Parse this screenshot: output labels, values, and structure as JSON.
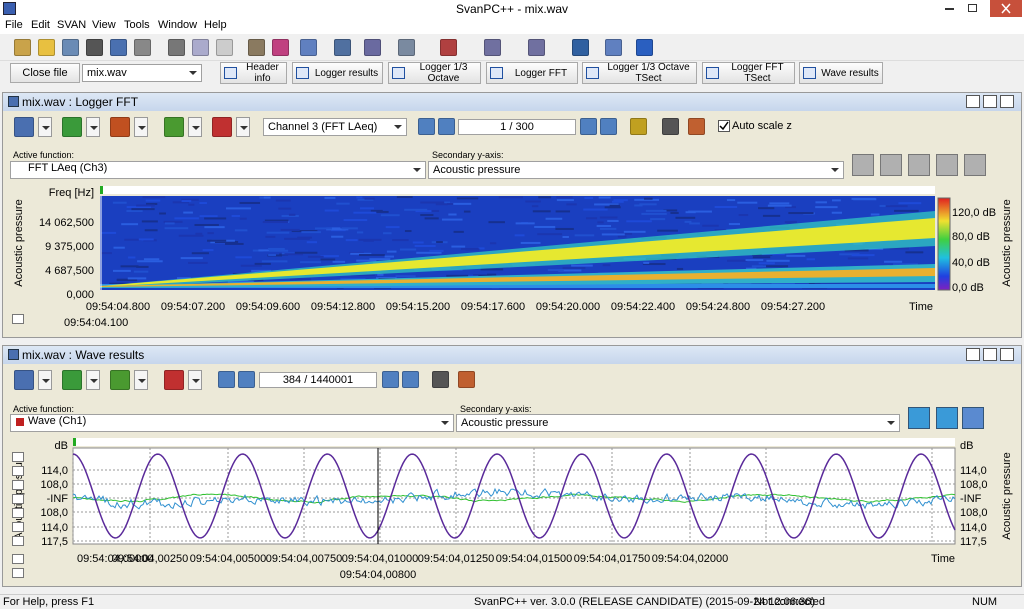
{
  "window": {
    "title": "SvanPC++ - mix.wav"
  },
  "menu": [
    "File",
    "Edit",
    "SVAN",
    "View",
    "Tools",
    "Window",
    "Help"
  ],
  "toolbar2": {
    "close_file": "Close file",
    "file": "mix.wav",
    "tabs": [
      "Header info",
      "Logger results",
      "Logger 1/3 Octave",
      "Logger FFT",
      "Logger 1/3 Octave TSect",
      "Logger FFT TSect",
      "Wave results"
    ]
  },
  "fft_panel": {
    "title": "mix.wav : Logger FFT",
    "channel": "Channel 3 (FFT LAeq)",
    "page": "1 / 300",
    "auto_scale": "Auto scale z",
    "active_function_label": "Active function:",
    "active_function": "FFT LAeq (Ch3)",
    "secondary_label": "Secondary y-axis:",
    "secondary": "Acoustic pressure",
    "y_title": "Acoustic pressure",
    "y_unit": "Freq [Hz]",
    "yticks": [
      "14 062,500",
      "9 375,000",
      "4 687,500",
      "0,000"
    ],
    "xticks": [
      "09:54:04.800",
      "09:54:07.200",
      "09:54:09.600",
      "09:54:12.800",
      "09:54:15.200",
      "09:54:17.600",
      "09:54:20.000",
      "09:54:22.400",
      "09:54:24.800",
      "09:54:27.200"
    ],
    "x_label": "Time",
    "cursor": "09:54:04.100",
    "colorbar_title": "Acoustic pressure",
    "colorbar_ticks": [
      "120,0 dB",
      "80,0 dB",
      "40,0 dB",
      "0,0 dB"
    ]
  },
  "wave_panel": {
    "title": "mix.wav : Wave results",
    "page": "384 / 1440001",
    "active_function_label": "Active function:",
    "active_function": "Wave (Ch1)",
    "secondary_label": "Secondary y-axis:",
    "secondary": "Acoustic pressure",
    "y_title": "Acoustic pressure",
    "y_unit": "dB",
    "yticks": [
      "114,0",
      "108,0",
      "-INF",
      "108,0",
      "114,0",
      "117,5"
    ],
    "y2_title": "Acoustic pressure",
    "y2_unit": "dB",
    "y2ticks": [
      "114,0",
      "108,0",
      "-INF",
      "108,0",
      "114,0",
      "117,5"
    ],
    "xticks": [
      "09:54:04,00000",
      "09:54:04,00250",
      "09:54:04,00500",
      "09:54:04,00750",
      "09:54:04,01000",
      "09:54:04,01250",
      "09:54:04,01500",
      "09:54:04,01750",
      "09:54:04,02000"
    ],
    "x_label": "Time",
    "cursor": "09:54:04,00800"
  },
  "status": {
    "help": "For Help, press F1",
    "version": "SvanPC++ ver. 3.0.0 (RELEASE CANDIDATE) (2015-09-24 12:06:36)",
    "connection": "Not connected",
    "num": "NUM"
  }
}
